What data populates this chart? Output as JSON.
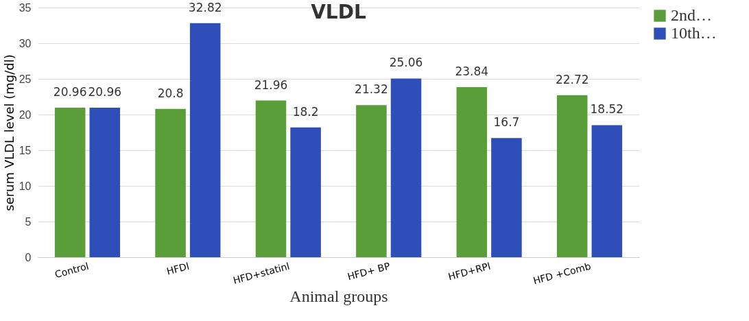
{
  "chart_data": {
    "type": "bar",
    "title": "VLDL",
    "xlabel": "Animal groups",
    "ylabel": "serum VLDL level (mg/dl)",
    "categories": [
      "Control",
      "HFDl",
      "HFD+statinl",
      "HFD+ BP",
      "HFD+RPl",
      "HFD +Comb"
    ],
    "series": [
      {
        "name": "2nd…",
        "color": "#5a9e3a",
        "values": [
          20.96,
          20.8,
          21.96,
          21.32,
          23.84,
          22.72
        ]
      },
      {
        "name": "10th…",
        "color": "#2e4fb8",
        "values": [
          20.96,
          32.82,
          18.2,
          25.06,
          16.7,
          18.52
        ]
      }
    ],
    "ylim": [
      0,
      35
    ],
    "yticks": [
      0,
      5,
      10,
      15,
      20,
      25,
      30,
      35
    ],
    "grid": "y",
    "legend": "right",
    "data_labels": true
  }
}
